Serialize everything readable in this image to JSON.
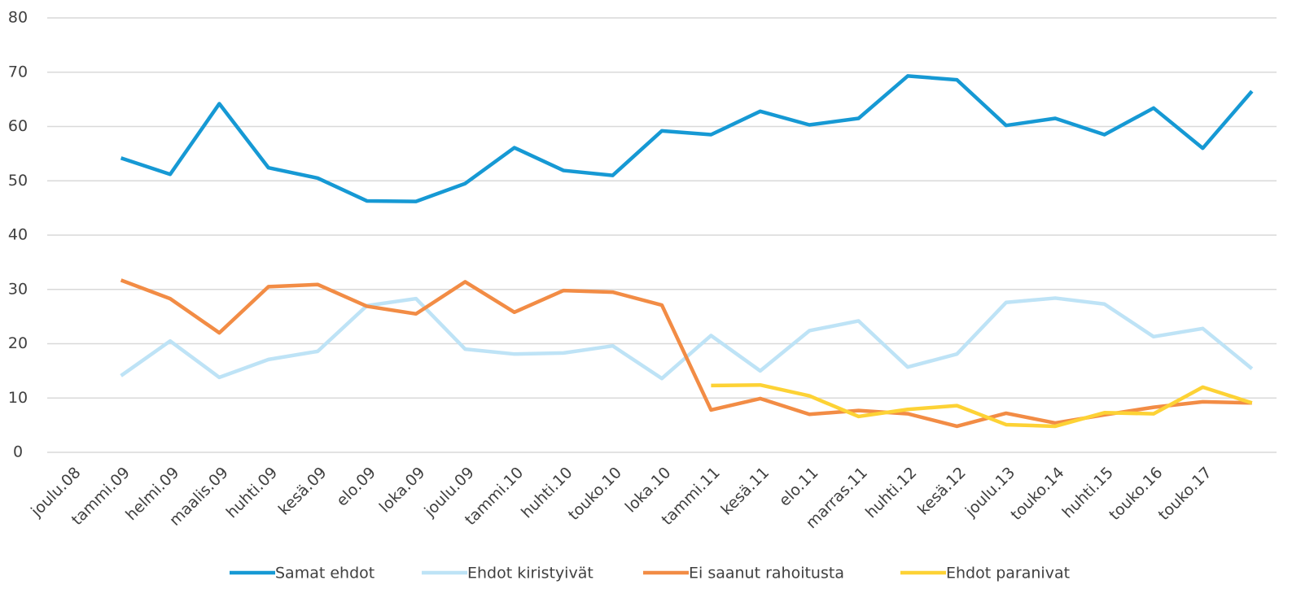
{
  "chart_data": {
    "type": "line",
    "categories": [
      "joulu.08",
      "tammi.09",
      "helmi.09",
      "maalis.09",
      "huhti.09",
      "kesä.09",
      "elo.09",
      "loka.09",
      "joulu.09",
      "tammi.10",
      "huhti.10",
      "touko.10",
      "loka.10",
      "tammi.11",
      "kesä.11",
      "elo.11",
      "marras.11",
      "huhti.12",
      "kesä.12",
      "joulu.13",
      "touko.14",
      "huhti.15",
      "touko.16",
      "touko.17",
      null
    ],
    "series": [
      {
        "name": "Samat ehdot",
        "color": "#1699d4",
        "values": [
          null,
          54.2,
          51.2,
          64.2,
          52.4,
          50.5,
          46.3,
          46.2,
          49.5,
          56.1,
          51.9,
          51.0,
          59.2,
          58.5,
          62.8,
          60.3,
          61.5,
          69.3,
          68.6,
          60.2,
          61.5,
          58.5,
          63.4,
          56.0,
          66.5
        ]
      },
      {
        "name": "Ehdot kiristyivät",
        "color": "#bee3f6",
        "values": [
          null,
          14.1,
          20.5,
          13.8,
          17.1,
          18.6,
          27.0,
          28.3,
          19.0,
          18.1,
          18.3,
          19.6,
          13.6,
          21.5,
          15.0,
          22.4,
          24.2,
          15.7,
          18.1,
          27.6,
          28.4,
          27.3,
          21.3,
          22.8,
          15.4
        ]
      },
      {
        "name": "Ei saanut rahoitusta",
        "color": "#f28c45",
        "values": [
          null,
          31.7,
          28.3,
          22.0,
          30.5,
          30.9,
          26.9,
          25.5,
          31.4,
          25.8,
          29.8,
          29.5,
          27.1,
          7.8,
          9.9,
          7.0,
          7.7,
          7.1,
          4.8,
          7.2,
          5.4,
          6.9,
          8.3,
          9.3,
          9.1
        ]
      },
      {
        "name": "Ehdot paranivat",
        "color": "#fdd235",
        "values": [
          null,
          null,
          null,
          null,
          null,
          null,
          null,
          null,
          null,
          null,
          null,
          null,
          null,
          12.3,
          12.4,
          10.4,
          6.6,
          7.9,
          8.6,
          5.1,
          4.8,
          7.3,
          7.1,
          12.0,
          9.1
        ]
      }
    ],
    "ylim": [
      0,
      80
    ],
    "yticks": [
      0,
      10,
      20,
      30,
      40,
      50,
      60,
      70,
      80
    ],
    "grid": true,
    "legend": "bottom"
  }
}
